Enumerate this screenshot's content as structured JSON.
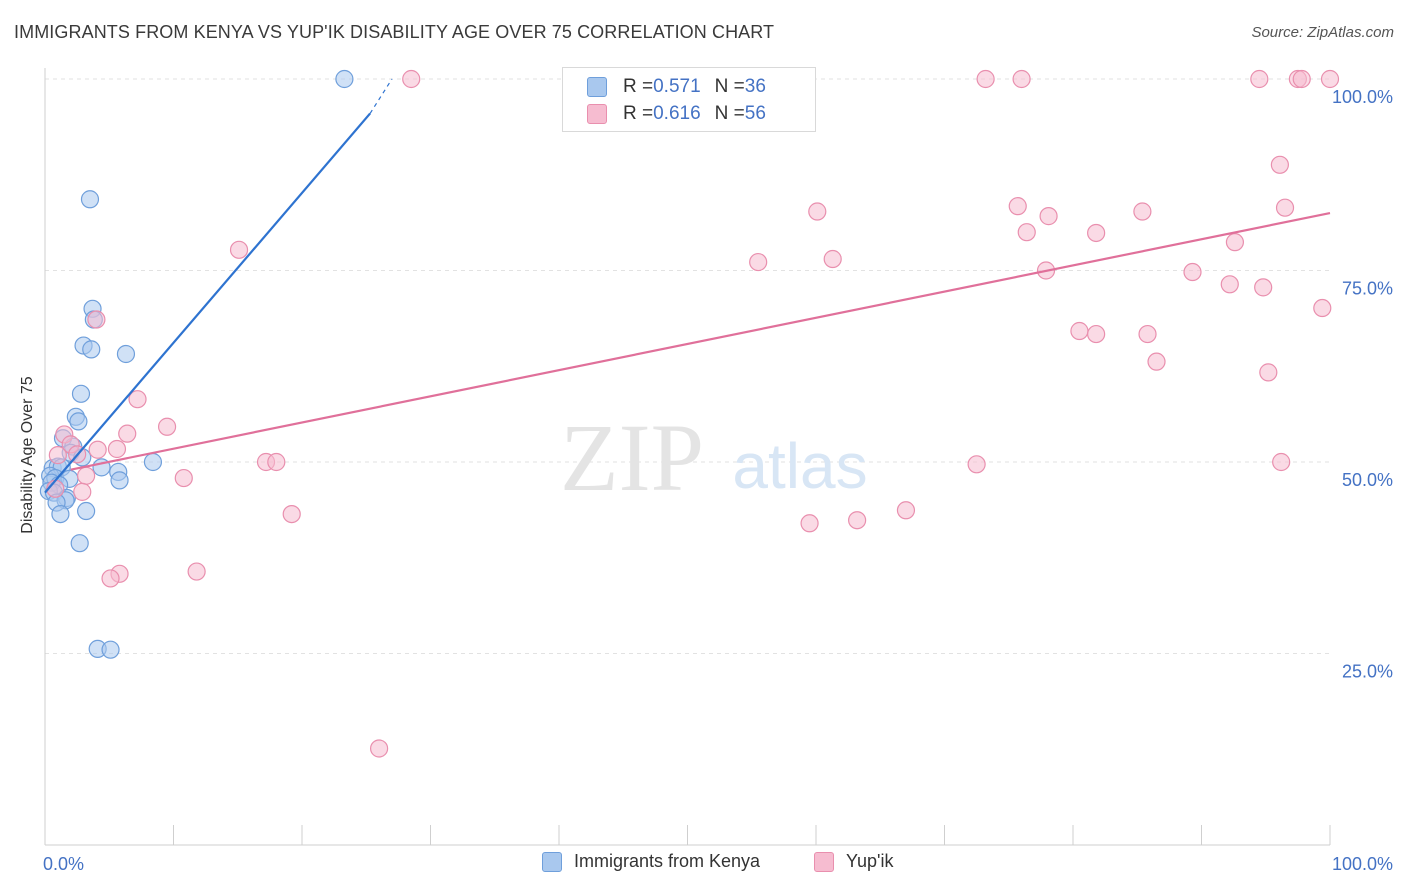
{
  "header": {
    "title": "IMMIGRANTS FROM KENYA VS YUP'IK DISABILITY AGE OVER 75 CORRELATION CHART",
    "source": "Source: ZipAtlas.com"
  },
  "watermark": {
    "zip": "ZIP",
    "atlas": "atlas"
  },
  "legend": {
    "rows": [
      {
        "r_label": "R = ",
        "r_value": "0.571",
        "n_label": "N = ",
        "n_value": "36"
      },
      {
        "r_label": "R = ",
        "r_value": "0.616",
        "n_label": "N = ",
        "n_value": "56"
      }
    ]
  },
  "colors": {
    "kenya_fill": "#a9c8ee",
    "kenya_stroke": "#6f9fdb",
    "kenya_line": "#2e73d0",
    "yupik_fill": "#f6bcd0",
    "yupik_stroke": "#e98fae",
    "yupik_line": "#e0709a",
    "tick_label": "#4472c4",
    "grid": "#e2e2e2"
  },
  "chart_data": {
    "type": "scatter",
    "title": "IMMIGRANTS FROM KENYA VS YUP'IK DISABILITY AGE OVER 75 CORRELATION CHART",
    "xlabel": "",
    "ylabel": "Disability Age Over 75",
    "xlim": [
      0,
      100
    ],
    "ylim": [
      0,
      100
    ],
    "x_tick_labels": [
      "0.0%",
      "100.0%"
    ],
    "y_ticks": [
      25,
      50,
      75,
      100
    ],
    "y_tick_labels": [
      "25.0%",
      "50.0%",
      "75.0%",
      "100.0%"
    ],
    "grid": true,
    "legend_position": "top-center",
    "series": [
      {
        "name": "Immigrants from Kenya",
        "r": 0.571,
        "n": 36,
        "points": [
          [
            23.3,
            100.0
          ],
          [
            3.5,
            84.3
          ],
          [
            3.7,
            70.0
          ],
          [
            3.8,
            68.6
          ],
          [
            3.0,
            65.2
          ],
          [
            3.6,
            64.7
          ],
          [
            6.3,
            64.1
          ],
          [
            2.8,
            58.9
          ],
          [
            2.4,
            55.9
          ],
          [
            2.6,
            55.3
          ],
          [
            1.4,
            53.1
          ],
          [
            2.2,
            52.0
          ],
          [
            2.0,
            51.2
          ],
          [
            2.9,
            50.6
          ],
          [
            8.4,
            50.0
          ],
          [
            0.6,
            49.2
          ],
          [
            1.0,
            49.4
          ],
          [
            1.3,
            49.3
          ],
          [
            4.4,
            49.3
          ],
          [
            5.7,
            48.7
          ],
          [
            0.4,
            48.2
          ],
          [
            0.8,
            47.9
          ],
          [
            1.9,
            47.8
          ],
          [
            5.8,
            47.6
          ],
          [
            0.5,
            47.3
          ],
          [
            1.1,
            47.0
          ],
          [
            0.3,
            46.2
          ],
          [
            0.7,
            46.0
          ],
          [
            1.7,
            45.3
          ],
          [
            1.6,
            45.0
          ],
          [
            0.9,
            44.7
          ],
          [
            3.2,
            43.6
          ],
          [
            1.2,
            43.2
          ],
          [
            2.7,
            39.4
          ],
          [
            4.1,
            25.6
          ],
          [
            5.1,
            25.5
          ]
        ],
        "trend": {
          "x": [
            0.0,
            25.3
          ],
          "y": [
            46.0,
            95.5
          ],
          "dashed_to": [
            27.0,
            100.0
          ]
        }
      },
      {
        "name": "Yup'ik",
        "r": 0.616,
        "n": 56,
        "points": [
          [
            28.5,
            100.0
          ],
          [
            58.5,
            100.0
          ],
          [
            73.2,
            100.0
          ],
          [
            76.0,
            100.0
          ],
          [
            94.5,
            100.0
          ],
          [
            97.5,
            100.0
          ],
          [
            97.8,
            100.0
          ],
          [
            100.0,
            100.0
          ],
          [
            96.1,
            88.8
          ],
          [
            75.7,
            83.4
          ],
          [
            96.5,
            83.2
          ],
          [
            60.1,
            82.7
          ],
          [
            85.4,
            82.7
          ],
          [
            78.1,
            82.1
          ],
          [
            76.4,
            80.0
          ],
          [
            81.8,
            79.9
          ],
          [
            92.6,
            78.7
          ],
          [
            15.1,
            77.7
          ],
          [
            61.3,
            76.5
          ],
          [
            55.5,
            76.1
          ],
          [
            77.9,
            75.0
          ],
          [
            89.3,
            74.8
          ],
          [
            92.2,
            73.2
          ],
          [
            94.8,
            72.8
          ],
          [
            99.4,
            70.1
          ],
          [
            4.0,
            68.6
          ],
          [
            80.5,
            67.1
          ],
          [
            81.8,
            66.7
          ],
          [
            85.8,
            66.7
          ],
          [
            86.5,
            63.1
          ],
          [
            95.2,
            61.7
          ],
          [
            7.2,
            58.2
          ],
          [
            9.5,
            54.6
          ],
          [
            6.4,
            53.7
          ],
          [
            1.5,
            53.6
          ],
          [
            2.0,
            52.3
          ],
          [
            2.5,
            51.0
          ],
          [
            4.1,
            51.6
          ],
          [
            5.6,
            51.7
          ],
          [
            1.0,
            50.9
          ],
          [
            17.2,
            50.0
          ],
          [
            18.0,
            50.0
          ],
          [
            72.5,
            49.7
          ],
          [
            96.2,
            50.0
          ],
          [
            3.2,
            48.2
          ],
          [
            10.8,
            47.9
          ],
          [
            0.8,
            46.5
          ],
          [
            2.9,
            46.1
          ],
          [
            19.2,
            43.2
          ],
          [
            67.0,
            43.7
          ],
          [
            59.5,
            42.0
          ],
          [
            63.2,
            42.4
          ],
          [
            5.8,
            35.4
          ],
          [
            5.1,
            34.8
          ],
          [
            11.8,
            35.7
          ],
          [
            26.0,
            12.6
          ]
        ],
        "trend": {
          "x": [
            2.0,
            100.0
          ],
          "y": [
            49.0,
            82.5
          ]
        }
      }
    ]
  }
}
